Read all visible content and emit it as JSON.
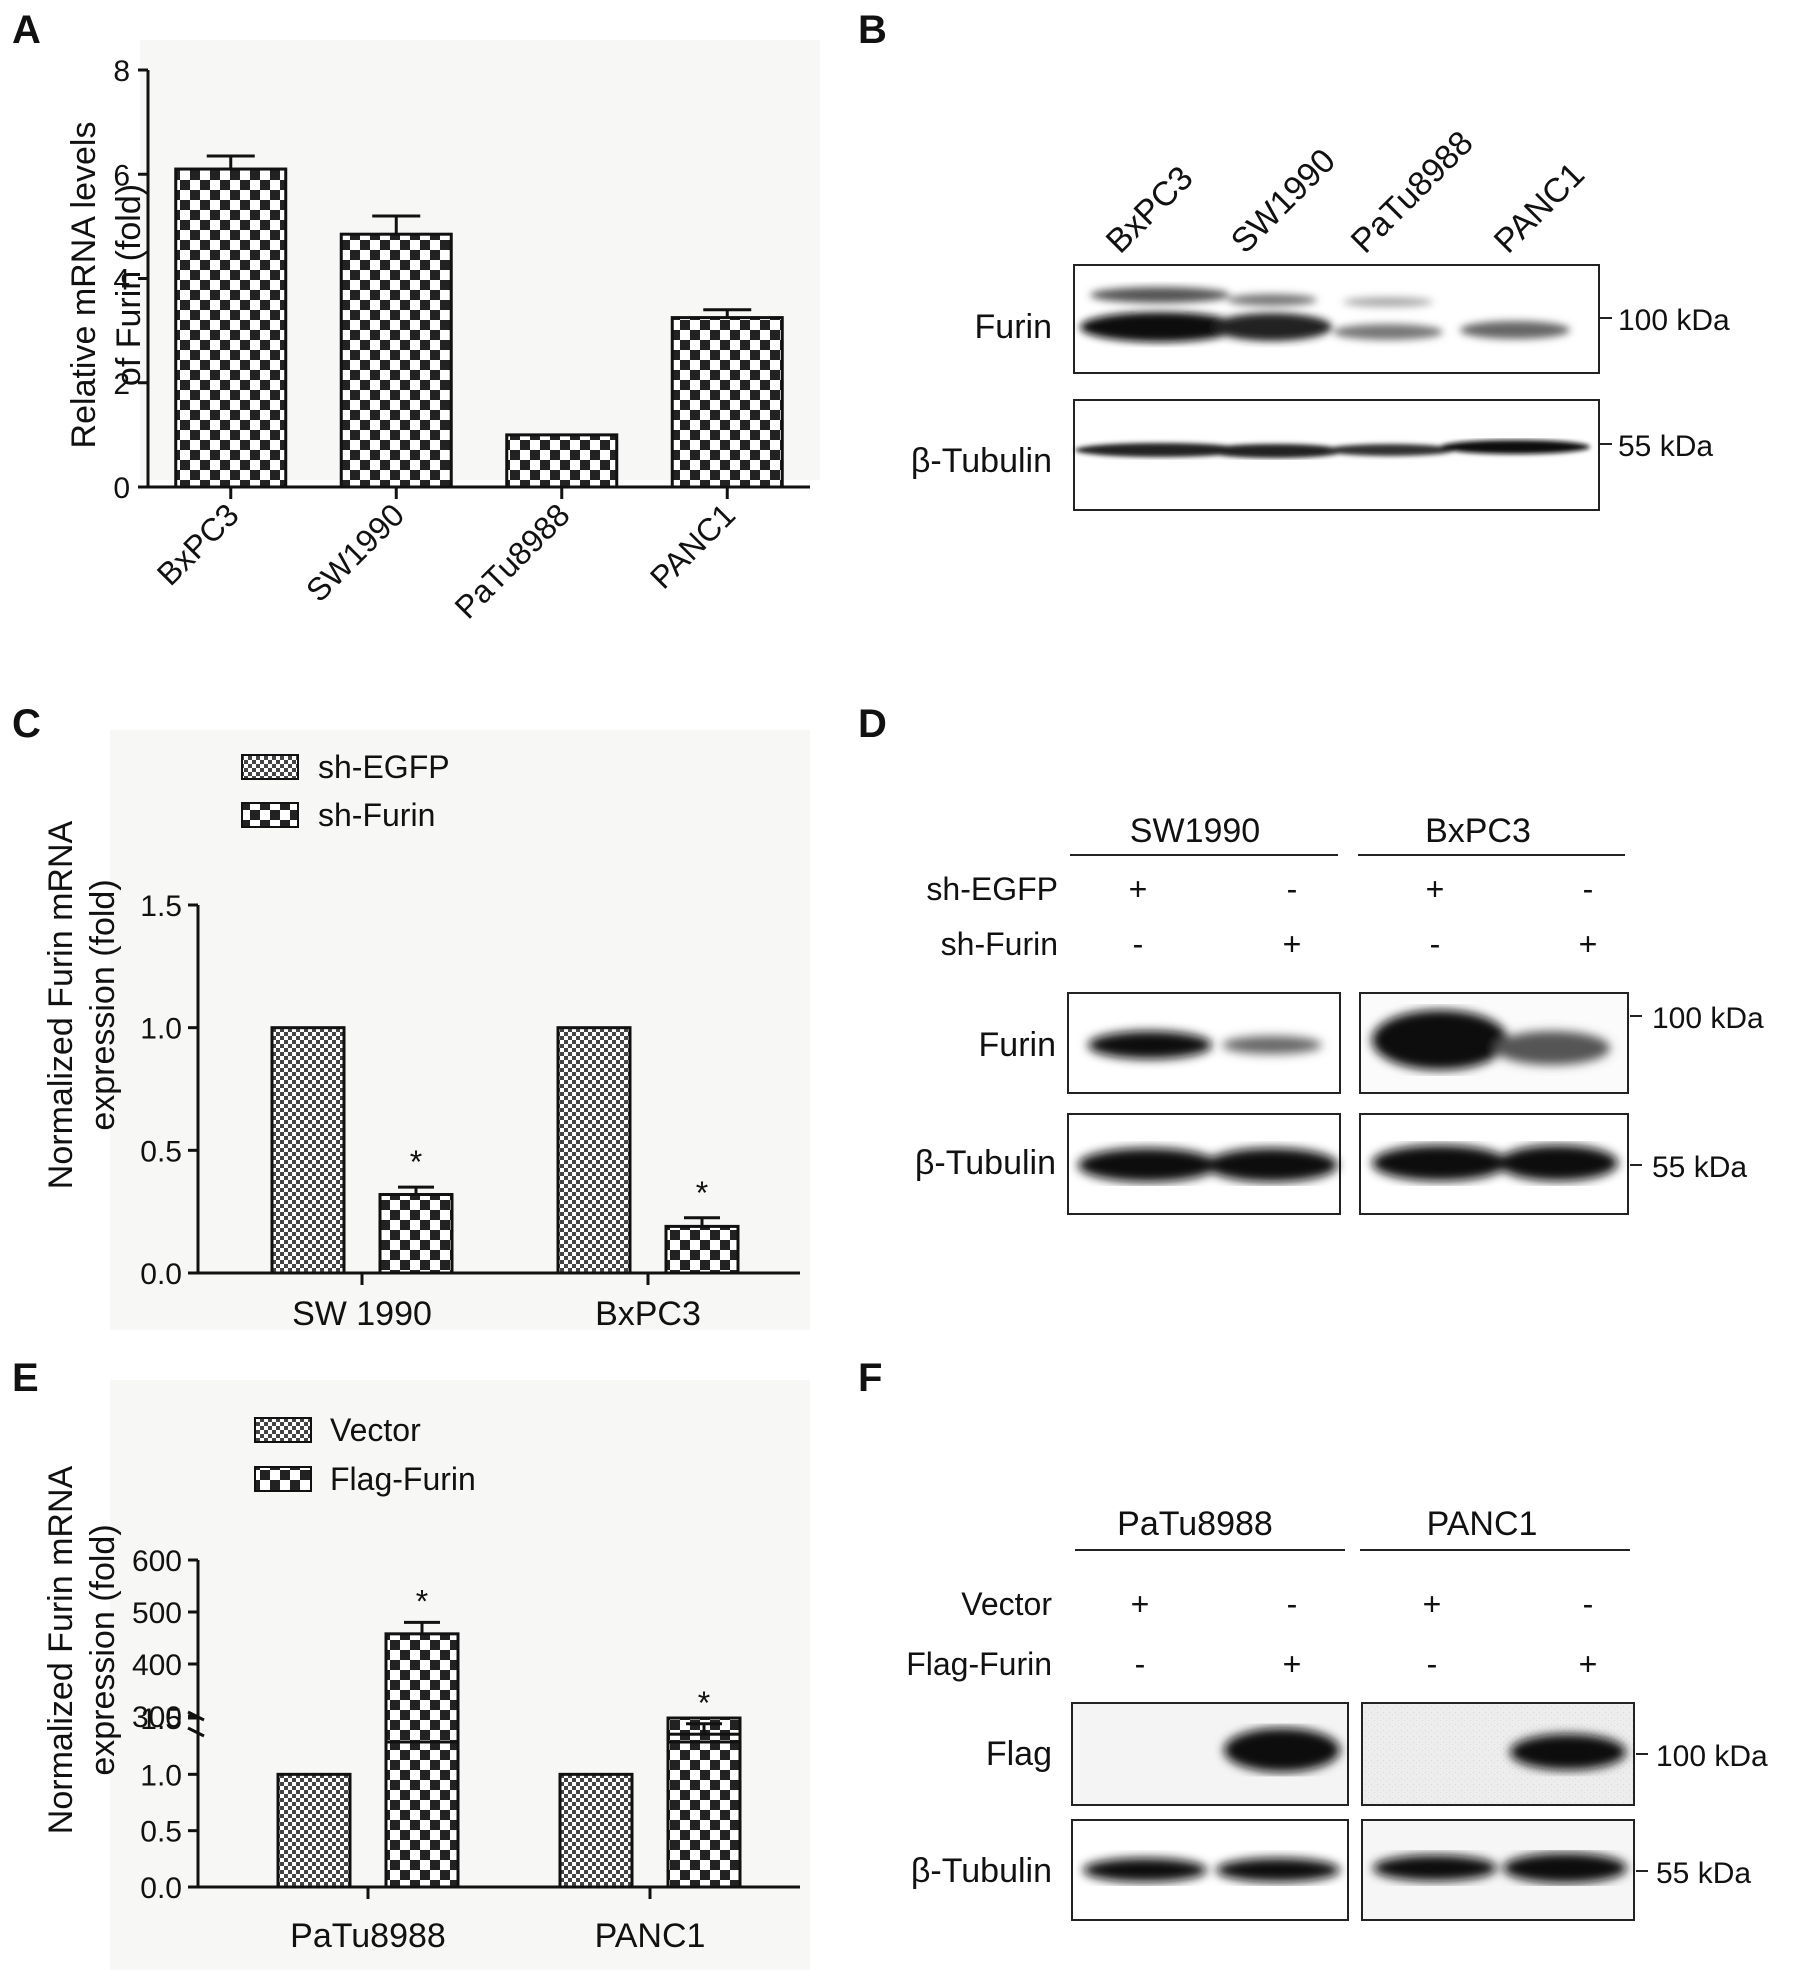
{
  "panels": {
    "A": "A",
    "B": "B",
    "C": "C",
    "D": "D",
    "E": "E",
    "F": "F"
  },
  "chart_data": [
    {
      "id": "A",
      "type": "bar",
      "ylabel_line1": "Relative mRNA levels",
      "ylabel_line2": "of Furin (fold)",
      "categories": [
        "BxPC3",
        "SW1990",
        "PaTu8988",
        "PANC1"
      ],
      "values": [
        6.1,
        4.85,
        1.0,
        3.25
      ],
      "errors": [
        0.25,
        0.35,
        0.0,
        0.15
      ],
      "ylim": [
        0,
        8
      ],
      "yticks": [
        0,
        2,
        4,
        6,
        8
      ]
    },
    {
      "id": "C",
      "type": "bar",
      "ylabel_line1": "Normalized Furin mRNA",
      "ylabel_line2": "expression (fold)",
      "categories": [
        "SW 1990",
        "BxPC3"
      ],
      "series": [
        {
          "name": "sh-EGFP",
          "values": [
            1.0,
            1.0
          ],
          "errors": [
            0,
            0
          ]
        },
        {
          "name": "sh-Furin",
          "values": [
            0.32,
            0.19
          ],
          "errors": [
            0.03,
            0.035
          ]
        }
      ],
      "significance": [
        "*",
        "*"
      ],
      "ylim": [
        0,
        1.5
      ],
      "yticks": [
        "0.0",
        "0.5",
        "1.0",
        "1.5"
      ]
    },
    {
      "id": "E",
      "type": "bar",
      "ylabel_line1": "Normalized Furin mRNA",
      "ylabel_line2": "expression (fold)",
      "categories": [
        "PaTu8988",
        "PANC1"
      ],
      "series": [
        {
          "name": "Vector",
          "values": [
            1.0,
            1.0
          ],
          "errors": [
            0,
            0
          ]
        },
        {
          "name": "Flag-Furin",
          "values": [
            458,
            265
          ],
          "errors": [
            22,
            20
          ]
        }
      ],
      "significance": [
        "*",
        "*"
      ],
      "axis_break": {
        "lower": [
          0,
          1.5
        ],
        "upper": [
          250,
          600
        ]
      },
      "yticks_lower": [
        "0.0",
        "0.5",
        "1.0",
        "1.5"
      ],
      "yticks_upper": [
        "300",
        "400",
        "500",
        "600"
      ]
    }
  ],
  "blot_B": {
    "lanes": [
      "BxPC3",
      "SW1990",
      "PaTu8988",
      "PANC1"
    ],
    "rows": [
      "Furin",
      "β-Tubulin"
    ],
    "markers": [
      "100 kDa",
      "55 kDa"
    ]
  },
  "blot_D": {
    "groups": [
      "SW1990",
      "BxPC3"
    ],
    "cond1": "sh-EGFP",
    "cond2": "sh-Furin",
    "plus": "+",
    "minus": "-",
    "rows": [
      "Furin",
      "β-Tubulin"
    ],
    "markers": [
      "100 kDa",
      "55 kDa"
    ]
  },
  "blot_F": {
    "groups": [
      "PaTu8988",
      "PANC1"
    ],
    "cond1": "Vector",
    "cond2": "Flag-Furin",
    "plus": "+",
    "minus": "-",
    "rows": [
      "Flag",
      "β-Tubulin"
    ],
    "markers": [
      "100 kDa",
      "55 kDa"
    ]
  }
}
